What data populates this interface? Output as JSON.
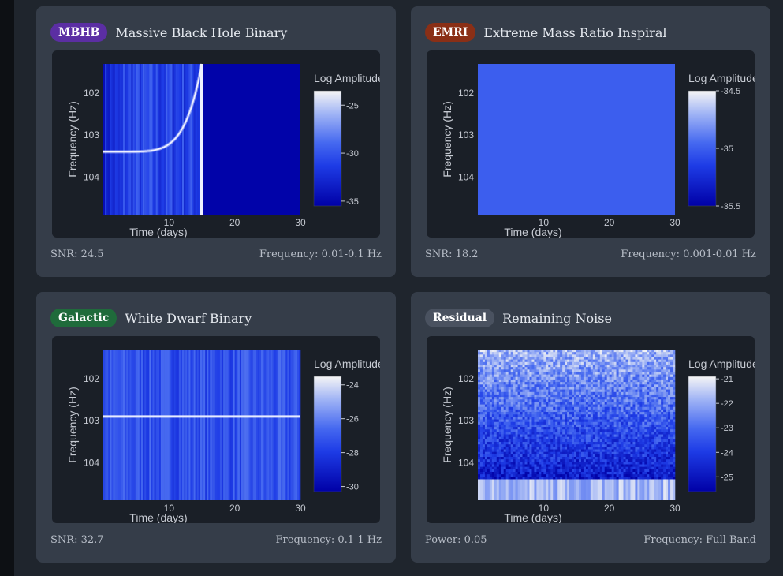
{
  "panels": [
    {
      "id": "mbhb",
      "badge": "MBHB",
      "badge_bg": "#5b2ea3",
      "badge_fg": "#ffffff",
      "title": "Massive Black Hole Binary",
      "footer_left": "SNR: 24.5",
      "footer_right": "Frequency: 0.01-0.1 Hz"
    },
    {
      "id": "emri",
      "badge": "EMRI",
      "badge_bg": "#8a2f16",
      "badge_fg": "#ffffff",
      "title": "Extreme Mass Ratio Inspiral",
      "footer_left": "SNR: 18.2",
      "footer_right": "Frequency: 0.001-0.01 Hz"
    },
    {
      "id": "galactic",
      "badge": "Galactic",
      "badge_bg": "#1f6b3b",
      "badge_fg": "#ffffff",
      "title": "White Dwarf Binary",
      "footer_left": "SNR: 32.7",
      "footer_right": "Frequency: 0.1-1 Hz"
    },
    {
      "id": "residual",
      "badge": "Residual",
      "badge_bg": "#4a5260",
      "badge_fg": "#ffffff",
      "title": "Remaining Noise",
      "footer_left": "Power: 0.05",
      "footer_right": "Frequency: Full Band"
    }
  ],
  "chart_data": [
    {
      "type": "heatmap",
      "xlabel": "Time (days)",
      "ylabel": "Frequency (Hz)",
      "x_ticks": [
        "10",
        "20",
        "30"
      ],
      "x_tick_values": [
        10,
        20,
        30
      ],
      "xlim": [
        0,
        30
      ],
      "y_ticks": [
        "102",
        "103",
        "104"
      ],
      "y_tick_values": [
        102,
        103,
        104
      ],
      "ylim": [
        101.3,
        104.9
      ],
      "colorbar_title": "Log Amplitude",
      "colorbar_ticks": [
        "-25",
        "-30",
        "-35"
      ],
      "colorbar_values": [
        -25,
        -30,
        -35
      ],
      "zlim": [
        -35.5,
        -23.5
      ],
      "pattern": "chirp",
      "chirp_end_day": 15,
      "chirp_start_freq": 103.4,
      "chirp_end_freq": 101.3
    },
    {
      "type": "heatmap",
      "xlabel": "Time (days)",
      "ylabel": "Frequency (Hz)",
      "x_ticks": [
        "10",
        "20",
        "30"
      ],
      "x_tick_values": [
        10,
        20,
        30
      ],
      "xlim": [
        0,
        30
      ],
      "y_ticks": [
        "102",
        "103",
        "104"
      ],
      "y_tick_values": [
        102,
        103,
        104
      ],
      "ylim": [
        101.3,
        104.9
      ],
      "colorbar_title": "Log Amplitude",
      "colorbar_ticks": [
        "-34.5",
        "-35",
        "-35.5"
      ],
      "colorbar_values": [
        -34.5,
        -35,
        -35.5
      ],
      "zlim": [
        -35.5,
        -34.5
      ],
      "pattern": "uniform",
      "uniform_value": -35
    },
    {
      "type": "heatmap",
      "xlabel": "Time (days)",
      "ylabel": "Frequency (Hz)",
      "x_ticks": [
        "10",
        "20",
        "30"
      ],
      "x_tick_values": [
        10,
        20,
        30
      ],
      "xlim": [
        0,
        30
      ],
      "y_ticks": [
        "102",
        "103",
        "104"
      ],
      "y_tick_values": [
        102,
        103,
        104
      ],
      "ylim": [
        101.3,
        104.9
      ],
      "colorbar_title": "Log Amplitude",
      "colorbar_ticks": [
        "-24",
        "-26",
        "-28",
        "-30"
      ],
      "colorbar_values": [
        -24,
        -26,
        -28,
        -30
      ],
      "zlim": [
        -30.3,
        -23.5
      ],
      "pattern": "line",
      "line_freq": 102.9
    },
    {
      "type": "heatmap",
      "xlabel": "Time (days)",
      "ylabel": "Frequency (Hz)",
      "x_ticks": [
        "10",
        "20",
        "30"
      ],
      "x_tick_values": [
        10,
        20,
        30
      ],
      "xlim": [
        0,
        30
      ],
      "y_ticks": [
        "102",
        "103",
        "104"
      ],
      "y_tick_values": [
        102,
        103,
        104
      ],
      "ylim": [
        101.3,
        104.9
      ],
      "colorbar_title": "Log Amplitude",
      "colorbar_ticks": [
        "-21",
        "-22",
        "-23",
        "-24",
        "-25"
      ],
      "colorbar_values": [
        -21,
        -22,
        -23,
        -24,
        -25
      ],
      "zlim": [
        -25.6,
        -20.9
      ],
      "pattern": "noise",
      "noise_band_freq": [
        104.4,
        104.9
      ]
    }
  ]
}
